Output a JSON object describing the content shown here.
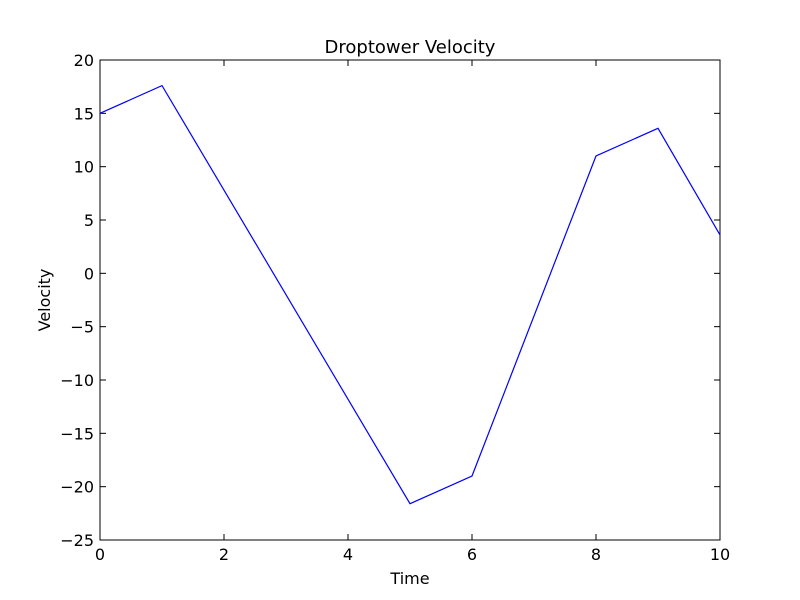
{
  "chart_data": {
    "type": "line",
    "title": "Droptower Velocity",
    "xlabel": "Time",
    "ylabel": "Velocity",
    "xlim": [
      0,
      10
    ],
    "ylim": [
      -25,
      20
    ],
    "x_ticks": [
      0,
      2,
      4,
      6,
      8,
      10
    ],
    "y_ticks": [
      -25,
      -20,
      -15,
      -10,
      -5,
      0,
      5,
      10,
      15,
      20
    ],
    "grid": false,
    "series": [
      {
        "color": "#0000ff",
        "x": [
          0,
          1,
          5,
          6,
          8,
          9,
          10
        ],
        "y": [
          15,
          17.6,
          -21.6,
          -19,
          11,
          13.6,
          3.6
        ]
      }
    ]
  }
}
